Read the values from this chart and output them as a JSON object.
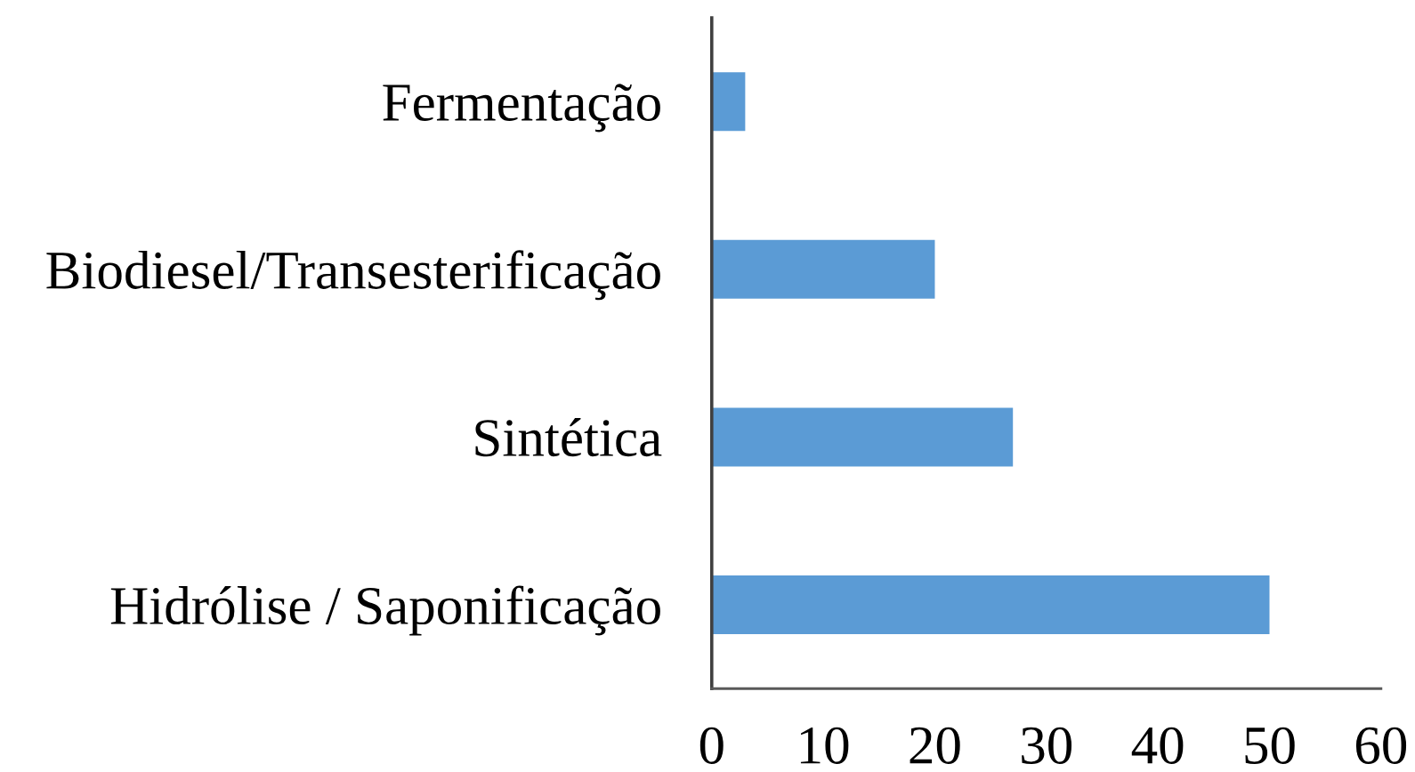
{
  "chart_data": {
    "type": "bar",
    "orientation": "horizontal",
    "categories": [
      "Fermentação",
      "Biodiesel/Transesterificação",
      "Sintética",
      "Hidrólise / Saponificação"
    ],
    "values": [
      3,
      20,
      27,
      50
    ],
    "color": "#5b9bd5",
    "xlim": [
      0,
      60
    ],
    "xticks": [
      0,
      10,
      20,
      30,
      40,
      50,
      60
    ],
    "grid": false
  }
}
